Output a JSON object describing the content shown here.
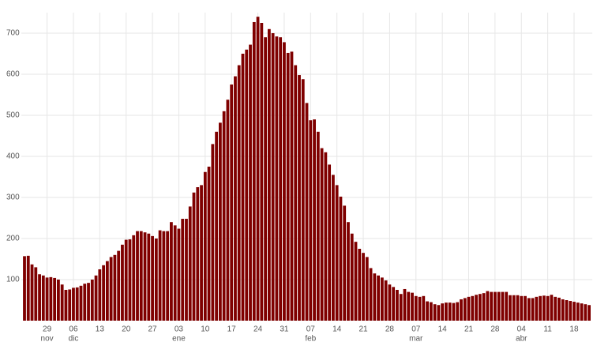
{
  "chart_data": {
    "type": "bar",
    "color": "#7f0000",
    "grid": true,
    "ylim": [
      0,
      750
    ],
    "yticks": [
      100,
      200,
      300,
      400,
      500,
      600,
      700
    ],
    "categories": [
      null,
      null,
      null,
      null,
      null,
      null,
      "29",
      null,
      null,
      null,
      null,
      null,
      null,
      "06",
      null,
      null,
      null,
      null,
      null,
      null,
      "13",
      null,
      null,
      null,
      null,
      null,
      null,
      "20",
      null,
      null,
      null,
      null,
      null,
      null,
      "27",
      null,
      null,
      null,
      null,
      null,
      null,
      "03",
      null,
      null,
      null,
      null,
      null,
      null,
      "10",
      null,
      null,
      null,
      null,
      null,
      null,
      "17",
      null,
      null,
      null,
      null,
      null,
      null,
      "24",
      null,
      null,
      null,
      null,
      null,
      null,
      "31",
      null,
      null,
      null,
      null,
      null,
      null,
      "07",
      null,
      null,
      null,
      null,
      null,
      null,
      "14",
      null,
      null,
      null,
      null,
      null,
      null,
      "21",
      null,
      null,
      null,
      null,
      null,
      null,
      "28",
      null,
      null,
      null,
      null,
      null,
      null,
      "07",
      null,
      null,
      null,
      null,
      null,
      null,
      "14",
      null,
      null,
      null,
      null,
      null,
      null,
      "21",
      null,
      null,
      null,
      null,
      null,
      null,
      "28",
      null,
      null,
      null,
      null,
      null,
      null,
      "04",
      null,
      null,
      null,
      null,
      null,
      null,
      "11",
      null,
      null,
      null,
      null,
      null,
      null,
      "18",
      null,
      null,
      null,
      null
    ],
    "category_months": [
      null,
      null,
      null,
      null,
      null,
      null,
      "nov",
      null,
      null,
      null,
      null,
      null,
      null,
      "dic",
      null,
      null,
      null,
      null,
      null,
      null,
      null,
      null,
      null,
      null,
      null,
      null,
      null,
      null,
      null,
      null,
      null,
      null,
      null,
      null,
      null,
      null,
      null,
      null,
      null,
      null,
      null,
      "ene",
      null,
      null,
      null,
      null,
      null,
      null,
      null,
      null,
      null,
      null,
      null,
      null,
      null,
      null,
      null,
      null,
      null,
      null,
      null,
      null,
      null,
      null,
      null,
      null,
      null,
      null,
      null,
      null,
      null,
      null,
      null,
      null,
      null,
      null,
      "feb",
      null,
      null,
      null,
      null,
      null,
      null,
      null,
      null,
      null,
      null,
      null,
      null,
      null,
      null,
      null,
      null,
      null,
      null,
      null,
      null,
      null,
      null,
      null,
      null,
      null,
      null,
      null,
      "mar",
      null,
      null,
      null,
      null,
      null,
      null,
      null,
      null,
      null,
      null,
      null,
      null,
      null,
      null,
      null,
      null,
      null,
      null,
      null,
      null,
      null,
      null,
      null,
      null,
      null,
      null,
      null,
      "abr",
      null,
      null,
      null,
      null,
      null,
      null,
      null,
      null,
      null,
      null,
      null,
      null,
      null,
      null,
      null,
      null,
      null,
      null
    ],
    "values": [
      157,
      158,
      137,
      130,
      113,
      110,
      105,
      106,
      104,
      100,
      88,
      75,
      76,
      80,
      81,
      85,
      90,
      92,
      100,
      110,
      125,
      135,
      145,
      155,
      160,
      170,
      185,
      197,
      198,
      208,
      218,
      218,
      215,
      212,
      206,
      200,
      220,
      218,
      218,
      240,
      232,
      224,
      248,
      248,
      278,
      312,
      325,
      330,
      362,
      375,
      430,
      460,
      482,
      510,
      538,
      575,
      595,
      622,
      650,
      660,
      672,
      727,
      740,
      725,
      690,
      710,
      700,
      692,
      690,
      678,
      652,
      655,
      622,
      598,
      588,
      530,
      488,
      490,
      460,
      420,
      410,
      380,
      355,
      330,
      302,
      280,
      240,
      212,
      192,
      175,
      165,
      155,
      128,
      115,
      110,
      105,
      98,
      88,
      82,
      75,
      65,
      77,
      70,
      68,
      60,
      58,
      60,
      47,
      45,
      40,
      38,
      42,
      44,
      44,
      43,
      45,
      52,
      55,
      58,
      60,
      63,
      65,
      67,
      72,
      70,
      70,
      70,
      70,
      70,
      62,
      62,
      62,
      60,
      60,
      55,
      55,
      58,
      60,
      61,
      60,
      63,
      58,
      56,
      52,
      50,
      48,
      46,
      44,
      42,
      40,
      38
    ]
  }
}
